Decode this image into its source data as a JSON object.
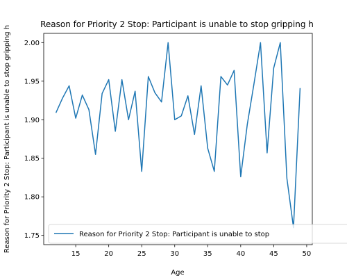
{
  "chart_data": {
    "type": "line",
    "title": "Reason for Priority 2 Stop: Participant is unable to stop gripping h",
    "xlabel": "Age",
    "ylabel": "Reason for Priority 2 Stop: Participant is unable to stop gripping h",
    "xlim": [
      10.15,
      50.85
    ],
    "ylim": [
      1.738,
      2.012
    ],
    "x_ticks": [
      15,
      20,
      25,
      30,
      35,
      40,
      45,
      50
    ],
    "y_ticks": [
      1.75,
      1.8,
      1.85,
      1.9,
      1.95,
      2.0
    ],
    "y_tick_labels": [
      "1.75",
      "1.80",
      "1.85",
      "1.90",
      "1.95",
      "2.00"
    ],
    "grid": false,
    "legend_position": "lower-right",
    "series": [
      {
        "name": "Reason for Priority 2 Stop: Participant is unable to stop",
        "color": "#1f77b4",
        "x": [
          12,
          13,
          14,
          15,
          16,
          17,
          18,
          19,
          20,
          21,
          22,
          23,
          24,
          25,
          26,
          27,
          28,
          29,
          30,
          31,
          32,
          33,
          34,
          35,
          36,
          37,
          38,
          39,
          40,
          41,
          42,
          43,
          44,
          45,
          46,
          47,
          48,
          49
        ],
        "y": [
          1.909,
          1.928,
          1.944,
          1.902,
          1.932,
          1.913,
          1.855,
          1.934,
          1.952,
          1.885,
          1.952,
          1.9,
          1.937,
          1.833,
          1.956,
          1.935,
          1.923,
          2.0,
          1.9,
          1.905,
          1.931,
          1.881,
          1.944,
          1.863,
          1.833,
          1.956,
          1.945,
          1.964,
          1.826,
          1.894,
          1.946,
          2.0,
          1.857,
          1.967,
          2.0,
          1.824,
          1.76,
          1.941
        ]
      }
    ]
  }
}
